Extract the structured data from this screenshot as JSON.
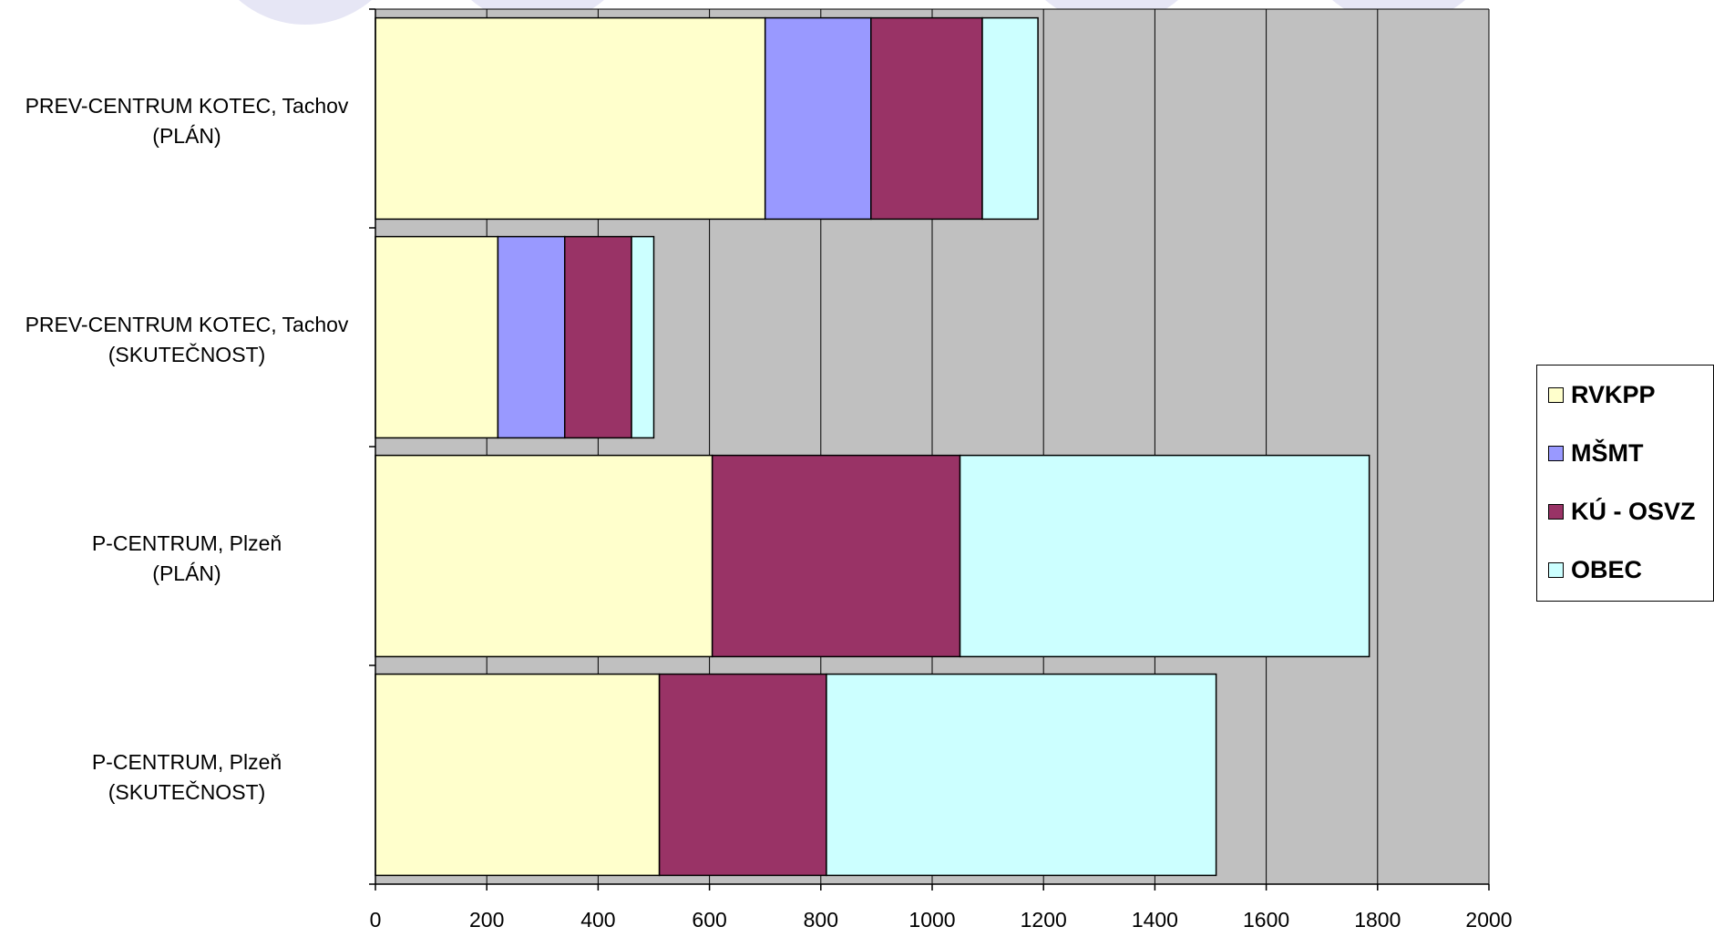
{
  "chart_data": {
    "type": "bar",
    "orientation": "horizontal",
    "stacked": true,
    "categories": [
      {
        "line1": "PREV-CENTRUM KOTEC, Tachov",
        "line2": "(PLÁN)"
      },
      {
        "line1": "PREV-CENTRUM KOTEC, Tachov",
        "line2": "(SKUTEČNOST)"
      },
      {
        "line1": "P-CENTRUM, Plzeň",
        "line2": "(PLÁN)"
      },
      {
        "line1": "P-CENTRUM, Plzeň",
        "line2": "(SKUTEČNOST)"
      }
    ],
    "series": [
      {
        "name": "RVKPP",
        "color": "#FFFFCC",
        "values": [
          700,
          220,
          605,
          510
        ]
      },
      {
        "name": "MŠMT",
        "color": "#9999FF",
        "values": [
          190,
          120,
          0,
          0
        ]
      },
      {
        "name": "KÚ - OSVZ",
        "color": "#993366",
        "values": [
          200,
          120,
          445,
          300
        ]
      },
      {
        "name": "OBEC",
        "color": "#CCFFFF",
        "values": [
          100,
          40,
          735,
          700
        ]
      }
    ],
    "xlim": [
      0,
      2000
    ],
    "xticks": [
      "0",
      "200",
      "400",
      "600",
      "800",
      "1000",
      "1200",
      "1400",
      "1600",
      "1800",
      "2000"
    ],
    "grid": "vertical",
    "plot_background": "#C0C0C0",
    "legend_position": "right"
  }
}
